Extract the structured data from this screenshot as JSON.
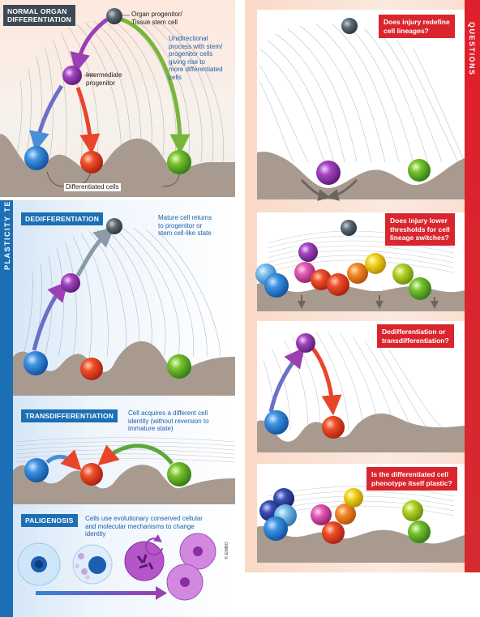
{
  "normal": {
    "title_line1": "NORMAL ORGAN",
    "title_line2": "DIFFERENTIATION",
    "stem_line1": "Organ progenitor/",
    "stem_line2": "Tissue stem cell",
    "intermediate_line1": "Intermediate",
    "intermediate_line2": "progenitor",
    "desc_lines": [
      "Unidirectional",
      "process with stem/",
      "progenitor cells",
      "giving rise to",
      "more differentiated",
      "cells"
    ],
    "differentiated": "Differentiated cells"
  },
  "plasticity_terms_label": "PLASTICITY TERMS",
  "questions_label": "QUESTIONS",
  "dedifferentiation": {
    "title": "DEDIFFERENTIATION",
    "desc_lines": [
      "Mature cell returns",
      "to progenitor or",
      "stem cell-like state"
    ]
  },
  "transdifferentiation": {
    "title": "TRANSDIFFERENTIATION",
    "desc_lines": [
      "Cell acquires a different cell",
      "identity (without reversion to",
      "immature state)"
    ]
  },
  "paligenosis": {
    "title": "PALIGENOSIS",
    "desc_lines": [
      "Cells use evolutionary conserved cellular",
      "and molecular mechanisms to change",
      "identity"
    ]
  },
  "questions": [
    {
      "lines": [
        "Does injury redefine",
        "cell lineages?"
      ]
    },
    {
      "lines": [
        "Does injury lower",
        "thresholds for cell",
        "lineage switches?"
      ]
    },
    {
      "lines": [
        "Dedifferentiation or",
        "transdifferentiation?"
      ]
    },
    {
      "lines": [
        "Is the differentiated cell",
        "phenotype itself plastic?"
      ]
    }
  ],
  "credit": "© EMBO",
  "colors": {
    "blue": "#2f86d6",
    "red": "#e8452a",
    "green": "#6bb82c",
    "purple": "#9b3fb5",
    "grey": "#5a6670",
    "ground": "#a89a8f",
    "panel_blue": "#1c6fb4",
    "panel_red": "#d9262e"
  }
}
